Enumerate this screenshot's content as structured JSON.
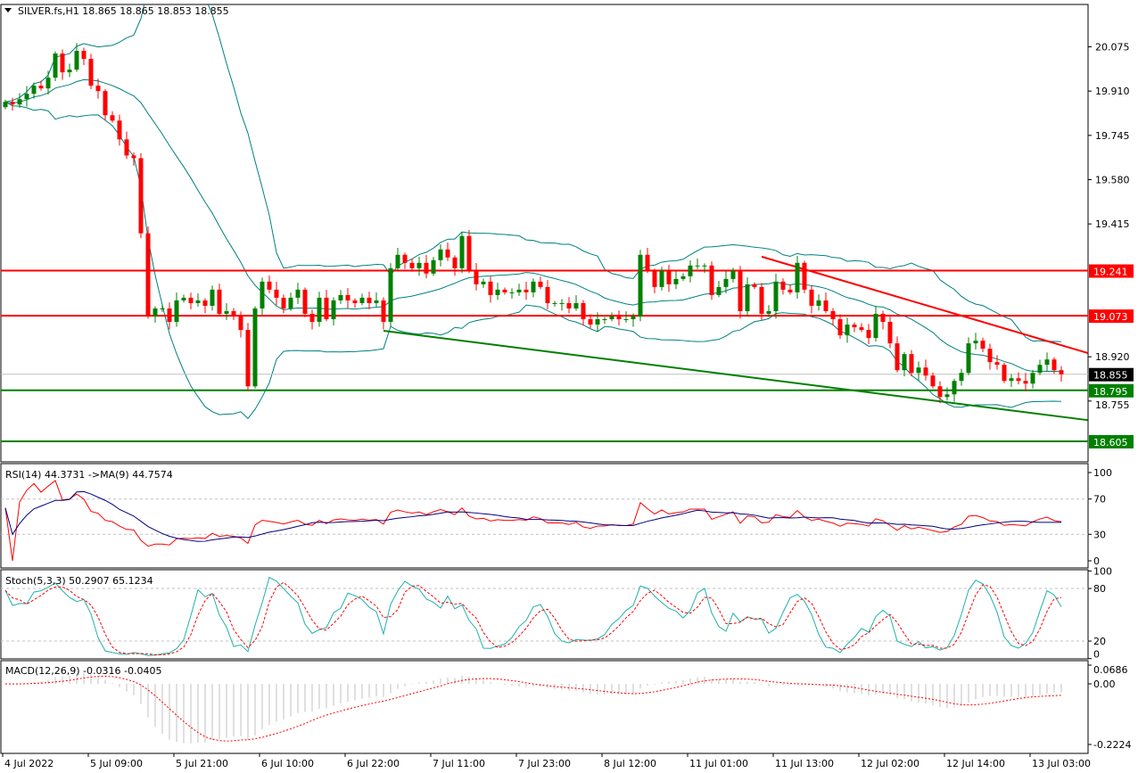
{
  "chart_data": [
    {
      "type": "candlestick",
      "title": "SILVER.fs,H1  18.865 18.865 18.853 18.855",
      "symbol": "SILVER.fs",
      "timeframe": "H1",
      "ohlc_last": {
        "open": 18.865,
        "high": 18.865,
        "low": 18.853,
        "close": 18.855
      },
      "first_open": 19.85,
      "closes": [
        19.87,
        19.86,
        19.88,
        19.9,
        19.93,
        19.92,
        19.96,
        20.05,
        19.98,
        19.99,
        20.06,
        20.03,
        19.93,
        19.91,
        19.82,
        19.8,
        19.73,
        19.67,
        19.66,
        19.38,
        19.07,
        19.1,
        19.1,
        19.05,
        19.13,
        19.14,
        19.12,
        19.13,
        19.11,
        19.17,
        19.08,
        19.09,
        19.07,
        19.02,
        18.81,
        19.1,
        19.2,
        19.17,
        19.14,
        19.1,
        19.14,
        19.17,
        19.08,
        19.05,
        19.14,
        19.06,
        19.13,
        19.15,
        19.13,
        19.12,
        19.14,
        19.12,
        19.13,
        19.05,
        19.25,
        19.3,
        19.27,
        19.25,
        19.27,
        19.23,
        19.28,
        19.32,
        19.29,
        19.25,
        19.37,
        19.24,
        19.19,
        19.2,
        19.15,
        19.17,
        19.16,
        19.16,
        19.17,
        19.16,
        19.2,
        19.18,
        19.12,
        19.12,
        19.12,
        19.1,
        19.12,
        19.06,
        19.04,
        19.06,
        19.06,
        19.07,
        19.06,
        19.06,
        19.07,
        19.3,
        19.24,
        19.18,
        19.24,
        19.19,
        19.21,
        19.22,
        19.26,
        19.26,
        19.26,
        19.15,
        19.18,
        19.21,
        19.24,
        19.09,
        19.19,
        19.18,
        19.08,
        19.09,
        19.2,
        19.17,
        19.16,
        19.27,
        19.17,
        19.11,
        19.13,
        19.09,
        19.06,
        19.0,
        19.04,
        19.03,
        19.02,
        18.99,
        19.08,
        19.05,
        18.97,
        18.87,
        18.93,
        18.86,
        18.88,
        18.85,
        18.81,
        18.77,
        18.78,
        18.83,
        18.86,
        18.97,
        18.98,
        18.95,
        18.9,
        18.89,
        18.83,
        18.84,
        18.83,
        18.82,
        18.86,
        18.89,
        18.91,
        18.87,
        18.855
      ],
      "ylim": [
        18.57,
        20.24
      ],
      "y_ticks": [
        "20.075",
        "19.910",
        "19.745",
        "19.580",
        "19.415",
        "18.920",
        "18.755"
      ],
      "x_ticks": [
        "4 Jul 2022",
        "5 Jul 09:00",
        "5 Jul 21:00",
        "6 Jul 10:00",
        "6 Jul 22:00",
        "7 Jul 11:00",
        "7 Jul 23:00",
        "8 Jul 12:00",
        "11 Jul 01:00",
        "11 Jul 13:00",
        "12 Jul 02:00",
        "12 Jul 14:00",
        "13 Jul 03:00"
      ],
      "overlay": "Bollinger Bands",
      "levels": [
        {
          "label": "19.241",
          "value": 19.241,
          "color": "#ff0000"
        },
        {
          "label": "19.073",
          "value": 19.073,
          "color": "#ff0000"
        },
        {
          "label": "18.795",
          "value": 18.795,
          "color": "#008000"
        },
        {
          "label": "18.605",
          "value": 18.605,
          "color": "#008000"
        }
      ],
      "current_price": {
        "label": "18.855",
        "value": 18.855
      },
      "trendlines": [
        {
          "color": "#ff0000",
          "from": [
            106,
            19.293
          ],
          "to": [
            151.7,
            18.934
          ]
        },
        {
          "color": "#008000",
          "from": [
            53,
            19.017
          ],
          "to": [
            151.7,
            18.684
          ]
        }
      ],
      "colors": {
        "up": "#008000",
        "down": "#ff0000",
        "bands": "#008080"
      }
    },
    {
      "type": "line",
      "label": "RSI(14) 44.3731  ->MA(9) 44.7574",
      "ylim": [
        0,
        100
      ],
      "y_ticks": [
        "100",
        "70",
        "30",
        "0"
      ],
      "levels": [
        70,
        30
      ],
      "colors": {
        "rsi": "#ff0000",
        "ma": "#000080"
      }
    },
    {
      "type": "line",
      "label": "Stoch(5,3,3) 50.2907 65.1234",
      "ylim": [
        0,
        100
      ],
      "y_ticks": [
        "100",
        "80",
        "20",
        "0"
      ],
      "levels": [
        80,
        20
      ],
      "colors": {
        "main": "#20b2aa",
        "signal": "#ff0000"
      }
    },
    {
      "type": "bar",
      "label": "MACD(12,26,9) -0.0316 -0.0405",
      "ylim": [
        -0.2224,
        0.0686
      ],
      "y_ticks": [
        "0.0686",
        "0.00",
        "-0.2224"
      ],
      "colors": {
        "hist": "#c0c0c0",
        "signal": "#ff0000"
      }
    }
  ]
}
